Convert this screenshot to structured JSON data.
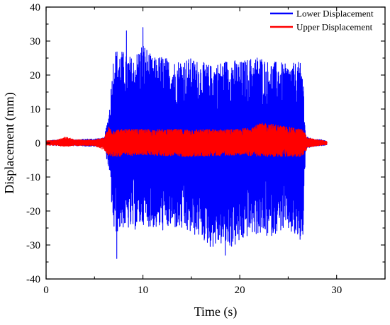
{
  "chart_data": {
    "type": "line",
    "xlabel": "Time (s)",
    "ylabel": "Displacement (mm)",
    "xlim": [
      0,
      35
    ],
    "ylim": [
      -40,
      40
    ],
    "xticks": [
      0,
      10,
      20,
      30
    ],
    "yticks": [
      -40,
      -30,
      -20,
      -10,
      0,
      10,
      20,
      30,
      40
    ],
    "grid": false,
    "legend_position": "top-right",
    "series": [
      {
        "name": "Lower Displacement",
        "color": "#0000ff",
        "envelope": [
          {
            "t": 0,
            "max": 0.5,
            "min": -0.5
          },
          {
            "t": 1,
            "max": 1.0,
            "min": -0.8
          },
          {
            "t": 2,
            "max": 1.2,
            "min": -0.8
          },
          {
            "t": 3,
            "max": 1.0,
            "min": -0.8
          },
          {
            "t": 4,
            "max": 1.2,
            "min": -0.9
          },
          {
            "t": 5,
            "max": 1.3,
            "min": -1.0
          },
          {
            "t": 6,
            "max": 1.5,
            "min": -1.2
          },
          {
            "t": 6.5,
            "max": 9,
            "min": -8
          },
          {
            "t": 7,
            "max": 28,
            "min": -27
          },
          {
            "t": 8,
            "max": 27,
            "min": -25
          },
          {
            "t": 9,
            "max": 25,
            "min": -26
          },
          {
            "t": 10,
            "max": 30,
            "min": -24
          },
          {
            "t": 11,
            "max": 25,
            "min": -25
          },
          {
            "t": 12,
            "max": 26,
            "min": -26
          },
          {
            "t": 13,
            "max": 24,
            "min": -25
          },
          {
            "t": 14,
            "max": 25,
            "min": -26
          },
          {
            "t": 15,
            "max": 25,
            "min": -27
          },
          {
            "t": 16,
            "max": 24,
            "min": -28
          },
          {
            "t": 17,
            "max": 23,
            "min": -31
          },
          {
            "t": 18,
            "max": 24,
            "min": -30
          },
          {
            "t": 19,
            "max": 25,
            "min": -31
          },
          {
            "t": 20,
            "max": 24,
            "min": -30
          },
          {
            "t": 21,
            "max": 25,
            "min": -27
          },
          {
            "t": 22,
            "max": 26,
            "min": -27
          },
          {
            "t": 23,
            "max": 24,
            "min": -28
          },
          {
            "t": 24,
            "max": 24,
            "min": -26
          },
          {
            "t": 25,
            "max": 23,
            "min": -26
          },
          {
            "t": 26,
            "max": 24,
            "min": -29
          },
          {
            "t": 26.5,
            "max": 23,
            "min": -30
          },
          {
            "t": 26.8,
            "max": 2,
            "min": -2
          },
          {
            "t": 27.5,
            "max": 1.2,
            "min": -1.0
          },
          {
            "t": 28.5,
            "max": 1.0,
            "min": -0.8
          },
          {
            "t": 29,
            "max": 0.5,
            "min": -0.5
          }
        ],
        "peaks": [
          {
            "t": 8.3,
            "y": 33
          },
          {
            "t": 10.0,
            "y": 34
          },
          {
            "t": 7.3,
            "y": -34
          },
          {
            "t": 18.5,
            "y": -33
          }
        ]
      },
      {
        "name": "Upper Displacement",
        "color": "#ff0000",
        "envelope": [
          {
            "t": 0,
            "max": 0.7,
            "min": -0.6
          },
          {
            "t": 1,
            "max": 0.8,
            "min": -0.7
          },
          {
            "t": 2,
            "max": 1.8,
            "min": -1.0
          },
          {
            "t": 3,
            "max": 1.0,
            "min": -0.8
          },
          {
            "t": 4,
            "max": 0.9,
            "min": -0.7
          },
          {
            "t": 5,
            "max": 1.0,
            "min": -0.8
          },
          {
            "t": 6,
            "max": 1.5,
            "min": -2.0
          },
          {
            "t": 6.5,
            "max": 5,
            "min": -4
          },
          {
            "t": 7,
            "max": 4,
            "min": -4
          },
          {
            "t": 10,
            "max": 4,
            "min": -3.5
          },
          {
            "t": 15,
            "max": 4,
            "min": -4
          },
          {
            "t": 20,
            "max": 4,
            "min": -3.5
          },
          {
            "t": 22.5,
            "max": 6,
            "min": -4
          },
          {
            "t": 26.5,
            "max": 4,
            "min": -4
          },
          {
            "t": 27,
            "max": 1.5,
            "min": -1.5
          },
          {
            "t": 28,
            "max": 1.0,
            "min": -0.8
          },
          {
            "t": 29,
            "max": 0.5,
            "min": -0.5
          }
        ]
      }
    ]
  }
}
